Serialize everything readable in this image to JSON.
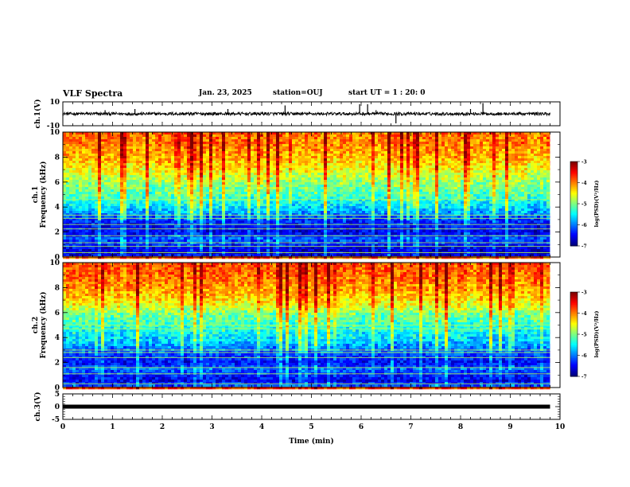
{
  "header": {
    "title": "VLF Spectra",
    "date": "Jan. 23, 2025",
    "station": "station=OUJ",
    "start": "start UT =  1 : 20: 0"
  },
  "chart_data": [
    {
      "type": "line",
      "name": "ch1-waveform",
      "ylabel": "ch.1(V)",
      "ylim": [
        -10,
        10
      ],
      "yticks": [
        "10",
        "-10"
      ],
      "xlim": [
        0,
        10
      ],
      "baseline": 0,
      "data_end_min": 9.8,
      "spikes": [
        {
          "x": 0.85,
          "y": 3
        },
        {
          "x": 1.45,
          "y": 4
        },
        {
          "x": 3.32,
          "y": 4
        },
        {
          "x": 4.47,
          "y": 7
        },
        {
          "x": 5.97,
          "y": 8
        },
        {
          "x": 6.13,
          "y": 8
        },
        {
          "x": 6.3,
          "y": 3
        },
        {
          "x": 6.7,
          "y": -8
        },
        {
          "x": 8.2,
          "y": 4
        },
        {
          "x": 8.45,
          "y": 9
        }
      ]
    },
    {
      "type": "heatmap",
      "name": "ch1-spectrogram",
      "ylabel": "ch.1\nFrequency (kHz)",
      "ylim": [
        0,
        10
      ],
      "yticks": [
        "0",
        "2",
        "4",
        "6",
        "8",
        "10"
      ],
      "xlim": [
        0,
        10
      ],
      "data_end_min": 9.8,
      "zlim": [
        -7,
        -3
      ],
      "colorbar_label": "log(PSD)(V²/Hz)",
      "colorbar_ticks": [
        "-3",
        "-4",
        "-5",
        "-6",
        "-7"
      ],
      "level_profile": [
        {
          "f": 0,
          "z": -6.6
        },
        {
          "f": 0.5,
          "z": -6.7
        },
        {
          "f": 1.0,
          "z": -6.4
        },
        {
          "f": 1.5,
          "z": -6.2
        },
        {
          "f": 2.0,
          "z": -6.6
        },
        {
          "f": 2.5,
          "z": -6.5
        },
        {
          "f": 3.0,
          "z": -6.3
        },
        {
          "f": 3.5,
          "z": -5.9
        },
        {
          "f": 4.0,
          "z": -5.6
        },
        {
          "f": 5.0,
          "z": -5.2
        },
        {
          "f": 6.0,
          "z": -4.9
        },
        {
          "f": 7.0,
          "z": -4.5
        },
        {
          "f": 8.0,
          "z": -4.2
        },
        {
          "f": 9.0,
          "z": -4.0
        },
        {
          "f": 10.0,
          "z": -3.9
        }
      ],
      "tone_lines_khz": [
        0.35,
        0.85,
        1.15,
        1.7,
        2.25,
        2.6,
        3.1,
        3.35,
        4.6
      ]
    },
    {
      "type": "heatmap",
      "name": "ch2-spectrogram",
      "ylabel": "ch.2\nFrequency (kHz)",
      "ylim": [
        0,
        10
      ],
      "yticks": [
        "0",
        "2",
        "4",
        "6",
        "8",
        "10"
      ],
      "xlim": [
        0,
        10
      ],
      "data_end_min": 9.8,
      "zlim": [
        -7,
        -3
      ],
      "colorbar_label": "log(PSD)(V²/Hz)",
      "colorbar_ticks": [
        "-3",
        "-4",
        "-5",
        "-6",
        "-7"
      ],
      "level_profile": [
        {
          "f": 0,
          "z": -6.0
        },
        {
          "f": 0.5,
          "z": -6.6
        },
        {
          "f": 1.0,
          "z": -6.4
        },
        {
          "f": 1.5,
          "z": -6.1
        },
        {
          "f": 2.0,
          "z": -6.5
        },
        {
          "f": 2.5,
          "z": -6.3
        },
        {
          "f": 3.0,
          "z": -6.1
        },
        {
          "f": 3.5,
          "z": -5.8
        },
        {
          "f": 4.0,
          "z": -5.6
        },
        {
          "f": 5.0,
          "z": -5.3
        },
        {
          "f": 6.0,
          "z": -5.0
        },
        {
          "f": 6.5,
          "z": -4.6
        },
        {
          "f": 7.0,
          "z": -4.4
        },
        {
          "f": 8.0,
          "z": -4.1
        },
        {
          "f": 9.0,
          "z": -3.9
        },
        {
          "f": 10.0,
          "z": -3.8
        }
      ],
      "tone_lines_khz": [
        0.3,
        1.1,
        1.6,
        2.4,
        2.8,
        3.0,
        4.7,
        5.0
      ]
    },
    {
      "type": "line",
      "name": "ch3-waveform",
      "ylabel": "ch.3(V)",
      "ylim": [
        -5,
        5
      ],
      "yticks": [
        "5",
        "0",
        "-5"
      ],
      "xlim": [
        0,
        10
      ],
      "baseline": 0,
      "data_end_min": 9.8
    }
  ],
  "xaxis": {
    "label": "Time (min)",
    "ticks": [
      "0",
      "1",
      "2",
      "3",
      "4",
      "5",
      "6",
      "7",
      "8",
      "9",
      "10"
    ]
  }
}
